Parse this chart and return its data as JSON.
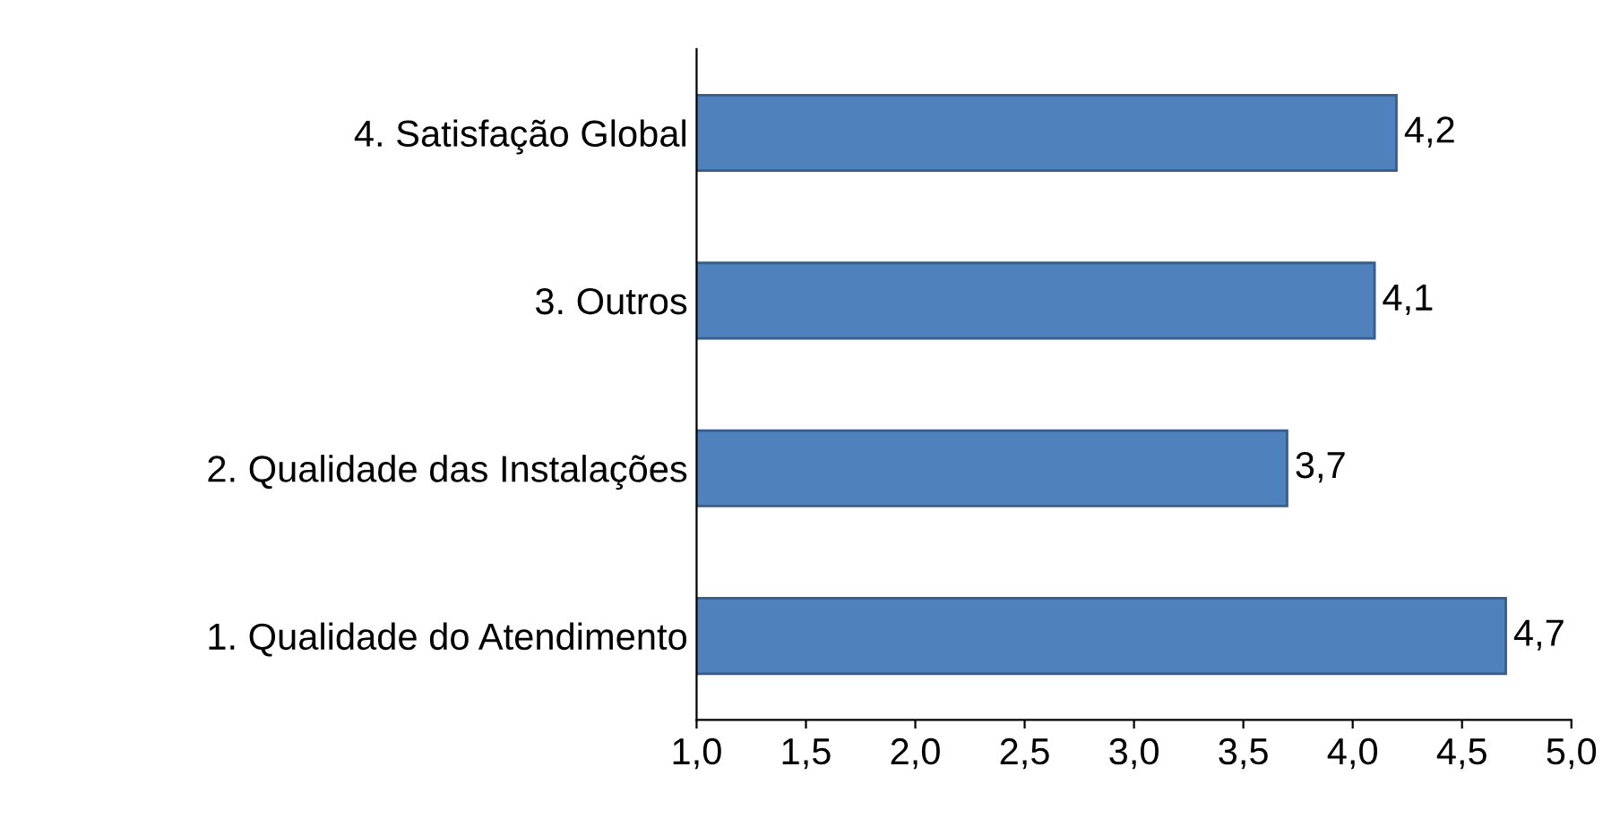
{
  "chart_data": {
    "type": "bar",
    "orientation": "horizontal",
    "categories": [
      "4. Satisfação Global",
      "3. Outros",
      "2. Qualidade das Instalações",
      "1. Qualidade do Atendimento"
    ],
    "values": [
      4.2,
      4.1,
      3.7,
      4.7
    ],
    "value_labels": [
      "4,2",
      "4,1",
      "3,7",
      "4,7"
    ],
    "color": "#4f81bd",
    "xlim": [
      1.0,
      5.0
    ],
    "xticks": [
      {
        "value": 1.0,
        "label": "1,0"
      },
      {
        "value": 1.5,
        "label": "1,5"
      },
      {
        "value": 2.0,
        "label": "2,0"
      },
      {
        "value": 2.5,
        "label": "2,5"
      },
      {
        "value": 3.0,
        "label": "3,0"
      },
      {
        "value": 3.5,
        "label": "3,5"
      },
      {
        "value": 4.0,
        "label": "4,0"
      },
      {
        "value": 4.5,
        "label": "4,5"
      },
      {
        "value": 5.0,
        "label": "5,0"
      }
    ],
    "grid": false,
    "legend": false
  }
}
